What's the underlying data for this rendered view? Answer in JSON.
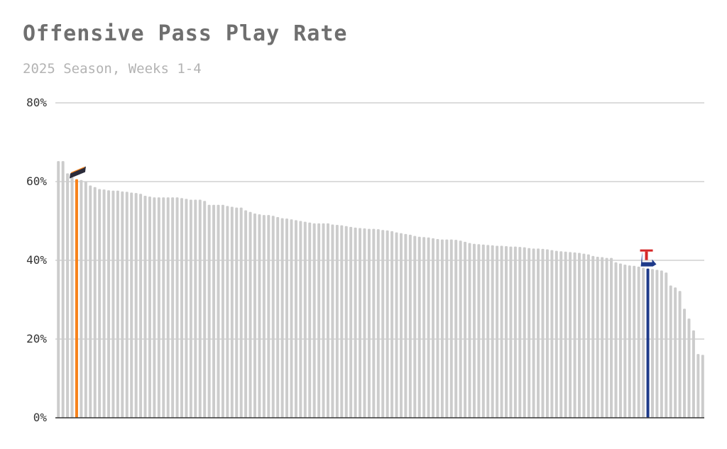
{
  "title": "Offensive Pass Play Rate",
  "subtitle": "2025 Season, Weeks 1-4",
  "colors": {
    "bar": "#cccccc",
    "grid": "#c8c8c8",
    "axis": "#333333",
    "highlight_orange": "#f7821b",
    "highlight_blue": "#1e3a8a"
  },
  "chart_data": {
    "type": "bar",
    "title": "Offensive Pass Play Rate",
    "subtitle": "2025 Season, Weeks 1-4",
    "xlabel": "",
    "ylabel": "",
    "ylim": [
      0,
      80
    ],
    "yticks": [
      0,
      20,
      40,
      60,
      80
    ],
    "ytick_labels": [
      "0%",
      "20%",
      "40%",
      "60%",
      "80%"
    ],
    "grid": true,
    "values": [
      65.2,
      65.2,
      62.1,
      61.1,
      60.6,
      60.4,
      60.1,
      59.0,
      58.6,
      58.1,
      58.0,
      57.8,
      57.7,
      57.7,
      57.5,
      57.4,
      57.2,
      57.1,
      56.9,
      56.4,
      56.2,
      56.0,
      56.0,
      56.0,
      56.0,
      56.0,
      56.0,
      55.8,
      55.6,
      55.4,
      55.4,
      55.4,
      55.1,
      54.1,
      54.1,
      54.1,
      54.1,
      53.8,
      53.6,
      53.4,
      53.4,
      52.7,
      52.3,
      51.9,
      51.7,
      51.5,
      51.5,
      51.3,
      51.0,
      50.7,
      50.6,
      50.4,
      50.2,
      50.0,
      49.8,
      49.6,
      49.4,
      49.4,
      49.4,
      49.4,
      49.1,
      49.0,
      48.9,
      48.7,
      48.5,
      48.3,
      48.2,
      48.1,
      48.0,
      48.0,
      47.9,
      47.7,
      47.6,
      47.4,
      47.1,
      46.9,
      46.7,
      46.5,
      46.2,
      46.0,
      45.9,
      45.8,
      45.6,
      45.4,
      45.3,
      45.3,
      45.3,
      45.2,
      45.0,
      44.7,
      44.4,
      44.2,
      44.1,
      44.0,
      43.9,
      43.8,
      43.7,
      43.7,
      43.6,
      43.5,
      43.5,
      43.4,
      43.3,
      43.1,
      43.0,
      43.0,
      42.9,
      42.8,
      42.6,
      42.4,
      42.3,
      42.2,
      42.1,
      42.0,
      41.9,
      41.7,
      41.5,
      41.1,
      40.9,
      40.8,
      40.6,
      40.6,
      39.5,
      39.2,
      38.9,
      38.7,
      38.6,
      38.4,
      38.1,
      37.9,
      37.8,
      37.6,
      37.4,
      36.9,
      33.6,
      33.1,
      32.2,
      27.7,
      25.2,
      22.2,
      16.2,
      16.0
    ],
    "highlights": [
      {
        "index": 4,
        "color": "#f7821b",
        "logo": "UTEP"
      },
      {
        "index": 129,
        "color": "#1e3a8a",
        "logo": "LT"
      }
    ]
  }
}
